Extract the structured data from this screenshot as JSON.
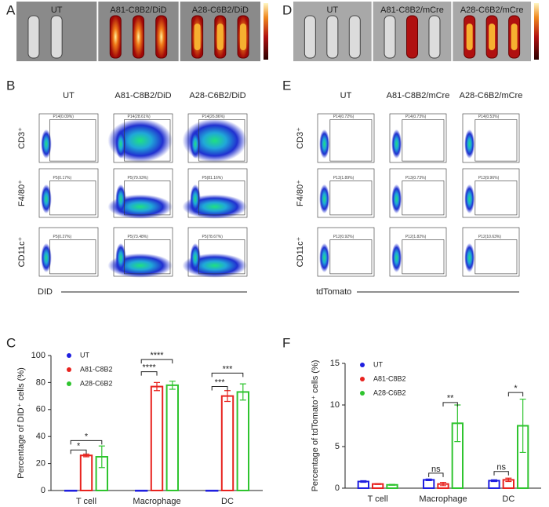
{
  "panel_labels": [
    "A",
    "B",
    "C",
    "D",
    "E",
    "F"
  ],
  "imaging": [
    {
      "columns": [
        "UT",
        "A81-C8B2/DiD",
        "A28-C6B2/DiD"
      ]
    },
    {
      "columns": [
        "UT",
        "A81-C8B2/mCre",
        "A28-C6B2/mCre"
      ]
    }
  ],
  "flow": [
    {
      "columns": [
        "UT",
        "A81-C8B2/DiD",
        "A28-C6B2/DiD"
      ],
      "rows": [
        "CD3⁺",
        "F4/80⁺",
        "CD11c⁺"
      ],
      "x_label": "DID",
      "gates": [
        [
          "P14(0.09%)",
          "P14(28.61%)",
          "P14(26.86%)"
        ],
        [
          "P5(0.17%)",
          "P5(79.93%)",
          "P5(81.16%)"
        ],
        [
          "P5(0.27%)",
          "P5(73.48%)",
          "P5(78.67%)"
        ]
      ]
    },
    {
      "columns": [
        "UT",
        "A81-C8B2/mCre",
        "A28-C6B2/mCre"
      ],
      "rows": [
        "CD3⁺",
        "F4/80⁺",
        "CD11c⁺"
      ],
      "x_label": "tdTomato",
      "gates": [
        [
          "P14(0.72%)",
          "P14(0.73%)",
          "P14(0.53%)"
        ],
        [
          "P13(1.89%)",
          "P13(0.73%)",
          "P13(9.96%)"
        ],
        [
          "P12(0.92%)",
          "P12(1.82%)",
          "P12(10.63%)"
        ]
      ]
    }
  ],
  "chart_data": [
    {
      "type": "bar",
      "y_label": "Percentage of DID⁺ cells (%)",
      "categories": [
        "T cell",
        "Macrophage",
        "DC"
      ],
      "series": [
        {
          "name": "UT",
          "color": "#1f1fe0",
          "values": [
            0,
            0,
            0
          ],
          "errors": [
            0,
            0,
            0
          ]
        },
        {
          "name": "A81-C8B2",
          "color": "#e8231f",
          "values": [
            26,
            77,
            70
          ],
          "errors": [
            1,
            3,
            4
          ]
        },
        {
          "name": "A28-C6B2",
          "color": "#2fc42f",
          "values": [
            25,
            78,
            73
          ],
          "errors": [
            8,
            3,
            6
          ]
        }
      ],
      "annotations": [
        "*",
        "*",
        "****",
        "****",
        "***",
        "***"
      ],
      "ylim": [
        0,
        100
      ],
      "yticks": [
        0,
        20,
        40,
        60,
        80,
        100
      ]
    },
    {
      "type": "bar",
      "y_label": "Percentage of tdTomato⁺ cells (%)",
      "categories": [
        "T cell",
        "Macrophage",
        "DC"
      ],
      "series": [
        {
          "name": "UT",
          "color": "#1f1fe0",
          "values": [
            0.8,
            1.0,
            0.9
          ],
          "errors": [
            0.1,
            0.1,
            0.1
          ]
        },
        {
          "name": "A81-C8B2",
          "color": "#e8231f",
          "values": [
            0.5,
            0.5,
            1.0
          ],
          "errors": [
            0.05,
            0.2,
            0.2
          ]
        },
        {
          "name": "A28-C6B2",
          "color": "#2fc42f",
          "values": [
            0.4,
            7.8,
            7.5
          ],
          "errors": [
            0.05,
            2.2,
            3.2
          ]
        }
      ],
      "annotations": [
        "ns",
        "**",
        "ns",
        "*"
      ],
      "ylim": [
        0,
        15
      ],
      "yticks": [
        0,
        5,
        10,
        15
      ]
    }
  ]
}
